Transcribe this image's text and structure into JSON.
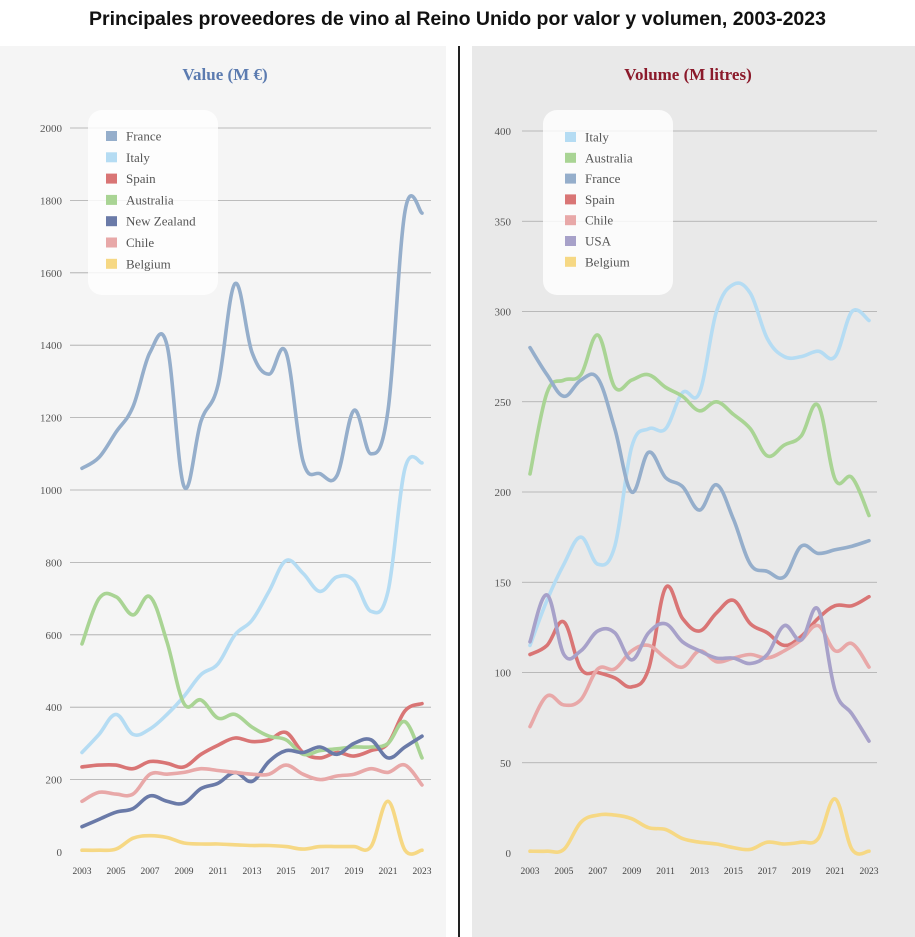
{
  "title": "Principales proveedores de vino al Reino Unido por valor y volumen, 2003-2023",
  "chart_data": [
    {
      "type": "line",
      "title": "Value (M €)",
      "title_color": "#5b7bb0",
      "ylim": [
        0,
        2000
      ],
      "yticks": [
        "0",
        "200",
        "400",
        "600",
        "800",
        "1000",
        "1200",
        "1400",
        "1600",
        "1800",
        "2000"
      ],
      "xticks": [
        "2003",
        "2005",
        "2007",
        "2009",
        "2011",
        "2013",
        "2015",
        "2017",
        "2019",
        "2021",
        "2023"
      ],
      "x": [
        2003,
        2004,
        2005,
        2006,
        2007,
        2008,
        2009,
        2010,
        2011,
        2012,
        2013,
        2014,
        2015,
        2016,
        2017,
        2018,
        2019,
        2020,
        2021,
        2022,
        2023
      ],
      "grid": true,
      "legend_position": "top-left",
      "series": [
        {
          "name": "France",
          "color": "#95aecb",
          "values": [
            1060,
            1090,
            1160,
            1230,
            1380,
            1400,
            1010,
            1190,
            1290,
            1570,
            1380,
            1320,
            1380,
            1080,
            1045,
            1040,
            1220,
            1100,
            1220,
            1770,
            1765
          ]
        },
        {
          "name": "Italy",
          "color": "#b5dcf3",
          "values": [
            275,
            325,
            380,
            325,
            340,
            380,
            430,
            490,
            520,
            600,
            640,
            720,
            805,
            770,
            720,
            760,
            750,
            665,
            720,
            1060,
            1075
          ]
        },
        {
          "name": "Spain",
          "color": "#d97575",
          "values": [
            235,
            240,
            240,
            230,
            250,
            245,
            235,
            270,
            295,
            315,
            305,
            310,
            330,
            275,
            260,
            275,
            265,
            280,
            300,
            390,
            410
          ]
        },
        {
          "name": "Australia",
          "color": "#a9d494",
          "values": [
            575,
            700,
            705,
            655,
            705,
            580,
            410,
            420,
            370,
            380,
            345,
            320,
            310,
            270,
            280,
            285,
            290,
            290,
            300,
            360,
            260
          ]
        },
        {
          "name": "New Zealand",
          "color": "#6a7aa8",
          "values": [
            70,
            90,
            110,
            120,
            155,
            140,
            135,
            175,
            190,
            220,
            195,
            250,
            280,
            275,
            290,
            270,
            300,
            310,
            260,
            290,
            320
          ]
        },
        {
          "name": "Chile",
          "color": "#e8a8a8",
          "values": [
            140,
            165,
            160,
            160,
            215,
            215,
            220,
            230,
            225,
            220,
            215,
            215,
            240,
            215,
            200,
            210,
            215,
            230,
            220,
            240,
            185
          ]
        },
        {
          "name": "Belgium",
          "color": "#f6d884",
          "values": [
            5,
            5,
            8,
            38,
            45,
            40,
            25,
            22,
            22,
            20,
            18,
            18,
            15,
            8,
            15,
            15,
            15,
            15,
            140,
            5,
            5
          ]
        }
      ]
    },
    {
      "type": "line",
      "title": "Volume (M litres)",
      "title_color": "#8b1a2b",
      "ylim": [
        0,
        400
      ],
      "yticks": [
        "0",
        "50",
        "100",
        "150",
        "200",
        "250",
        "300",
        "350",
        "400"
      ],
      "xticks": [
        "2003",
        "2005",
        "2007",
        "2009",
        "2011",
        "2013",
        "2015",
        "2017",
        "2019",
        "2021",
        "2023"
      ],
      "x": [
        2003,
        2004,
        2005,
        2006,
        2007,
        2008,
        2009,
        2010,
        2011,
        2012,
        2013,
        2014,
        2015,
        2016,
        2017,
        2018,
        2019,
        2020,
        2021,
        2022,
        2023
      ],
      "grid": true,
      "legend_position": "top-left",
      "series": [
        {
          "name": "Italy",
          "color": "#b5dcf3",
          "values": [
            115,
            140,
            160,
            175,
            160,
            170,
            225,
            235,
            235,
            255,
            255,
            300,
            315,
            310,
            285,
            275,
            275,
            278,
            275,
            300,
            295
          ]
        },
        {
          "name": "Australia",
          "color": "#a9d494",
          "values": [
            210,
            255,
            262,
            265,
            287,
            258,
            262,
            265,
            258,
            253,
            245,
            250,
            243,
            235,
            220,
            226,
            231,
            248,
            207,
            208,
            187
          ]
        },
        {
          "name": "France",
          "color": "#95aecb",
          "values": [
            280,
            265,
            253,
            262,
            263,
            235,
            200,
            222,
            208,
            203,
            190,
            204,
            185,
            160,
            156,
            153,
            170,
            166,
            168,
            170,
            173
          ]
        },
        {
          "name": "Spain",
          "color": "#d97575",
          "values": [
            110,
            115,
            128,
            102,
            100,
            97,
            92,
            102,
            147,
            130,
            123,
            133,
            140,
            127,
            122,
            115,
            120,
            130,
            137,
            137,
            142
          ]
        },
        {
          "name": "Chile",
          "color": "#e8a8a8",
          "values": [
            70,
            87,
            82,
            85,
            102,
            102,
            112,
            115,
            108,
            103,
            112,
            106,
            108,
            110,
            108,
            112,
            118,
            126,
            112,
            116,
            103
          ]
        },
        {
          "name": "USA",
          "color": "#a7a1c9",
          "values": [
            117,
            143,
            110,
            112,
            123,
            122,
            107,
            122,
            127,
            117,
            112,
            108,
            108,
            105,
            110,
            126,
            118,
            135,
            90,
            77,
            62
          ]
        },
        {
          "name": "Belgium",
          "color": "#f6d884",
          "values": [
            1,
            1,
            2,
            17,
            21,
            21,
            19,
            14,
            13,
            8,
            6,
            5,
            3,
            2,
            6,
            5,
            6,
            8,
            30,
            2,
            1
          ]
        }
      ]
    }
  ]
}
